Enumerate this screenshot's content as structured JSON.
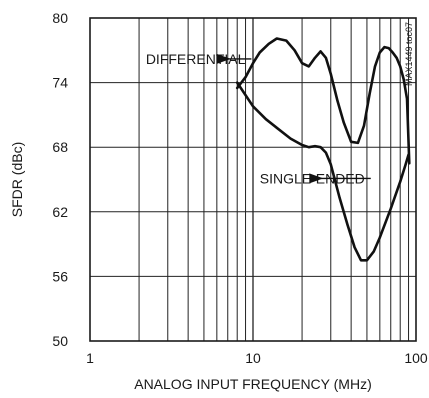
{
  "chart_data": {
    "type": "line",
    "x_scale": "log",
    "xlim": [
      1,
      100
    ],
    "ylim": [
      50,
      80
    ],
    "grid": true,
    "xlabel": "ANALOG INPUT FREQUENCY (MHz)",
    "ylabel": "SFDR (dBc)",
    "x_ticks": [
      1,
      10,
      100
    ],
    "x_tick_labels": [
      "1",
      "10",
      "100"
    ],
    "y_ticks": [
      50,
      56,
      62,
      68,
      74,
      80
    ],
    "y_tick_labels": [
      "50",
      "56",
      "62",
      "68",
      "74",
      "80"
    ],
    "figure_id": "MAX1449 toc07",
    "series": [
      {
        "name": "DIFFERENTIAL",
        "x": [
          8,
          9,
          10,
          11,
          12.5,
          14,
          16,
          18,
          20,
          22,
          24,
          26,
          28,
          30,
          33,
          36,
          40,
          44,
          48,
          52,
          56,
          60,
          64,
          68,
          72,
          76,
          80,
          84,
          88,
          91
        ],
        "y": [
          73.5,
          74.5,
          75.8,
          76.8,
          77.6,
          78.1,
          77.9,
          77,
          75.8,
          75.5,
          76.3,
          76.9,
          76.3,
          74.8,
          72.3,
          70.3,
          68.5,
          68.4,
          70,
          73,
          75.5,
          76.8,
          77.3,
          77.2,
          76.8,
          76.3,
          75.5,
          74.3,
          72.5,
          66.5
        ]
      },
      {
        "name": "SINGLE-ENDED",
        "x": [
          8,
          10,
          12,
          14,
          17,
          20,
          22,
          24,
          26,
          28,
          30,
          34,
          38,
          42,
          46,
          50,
          55,
          60,
          70,
          80,
          86,
          90
        ],
        "y": [
          74,
          71.8,
          70.6,
          69.8,
          68.8,
          68.2,
          68,
          68.1,
          68,
          67.5,
          66.4,
          63.3,
          60.8,
          58.7,
          57.5,
          57.5,
          58.3,
          59.6,
          62.3,
          64.8,
          66.3,
          67.3
        ]
      }
    ],
    "annotations": [
      {
        "text": "DIFFERENTIAL",
        "x": 2.2,
        "y": 76.2,
        "arrow_to_x": 7.3,
        "arrow_to_y": 76.2
      },
      {
        "text": "SINGLE-ENDED",
        "x": 11,
        "y": 65.1,
        "arrow_to_x": 27,
        "arrow_to_y": 65.1
      }
    ]
  }
}
